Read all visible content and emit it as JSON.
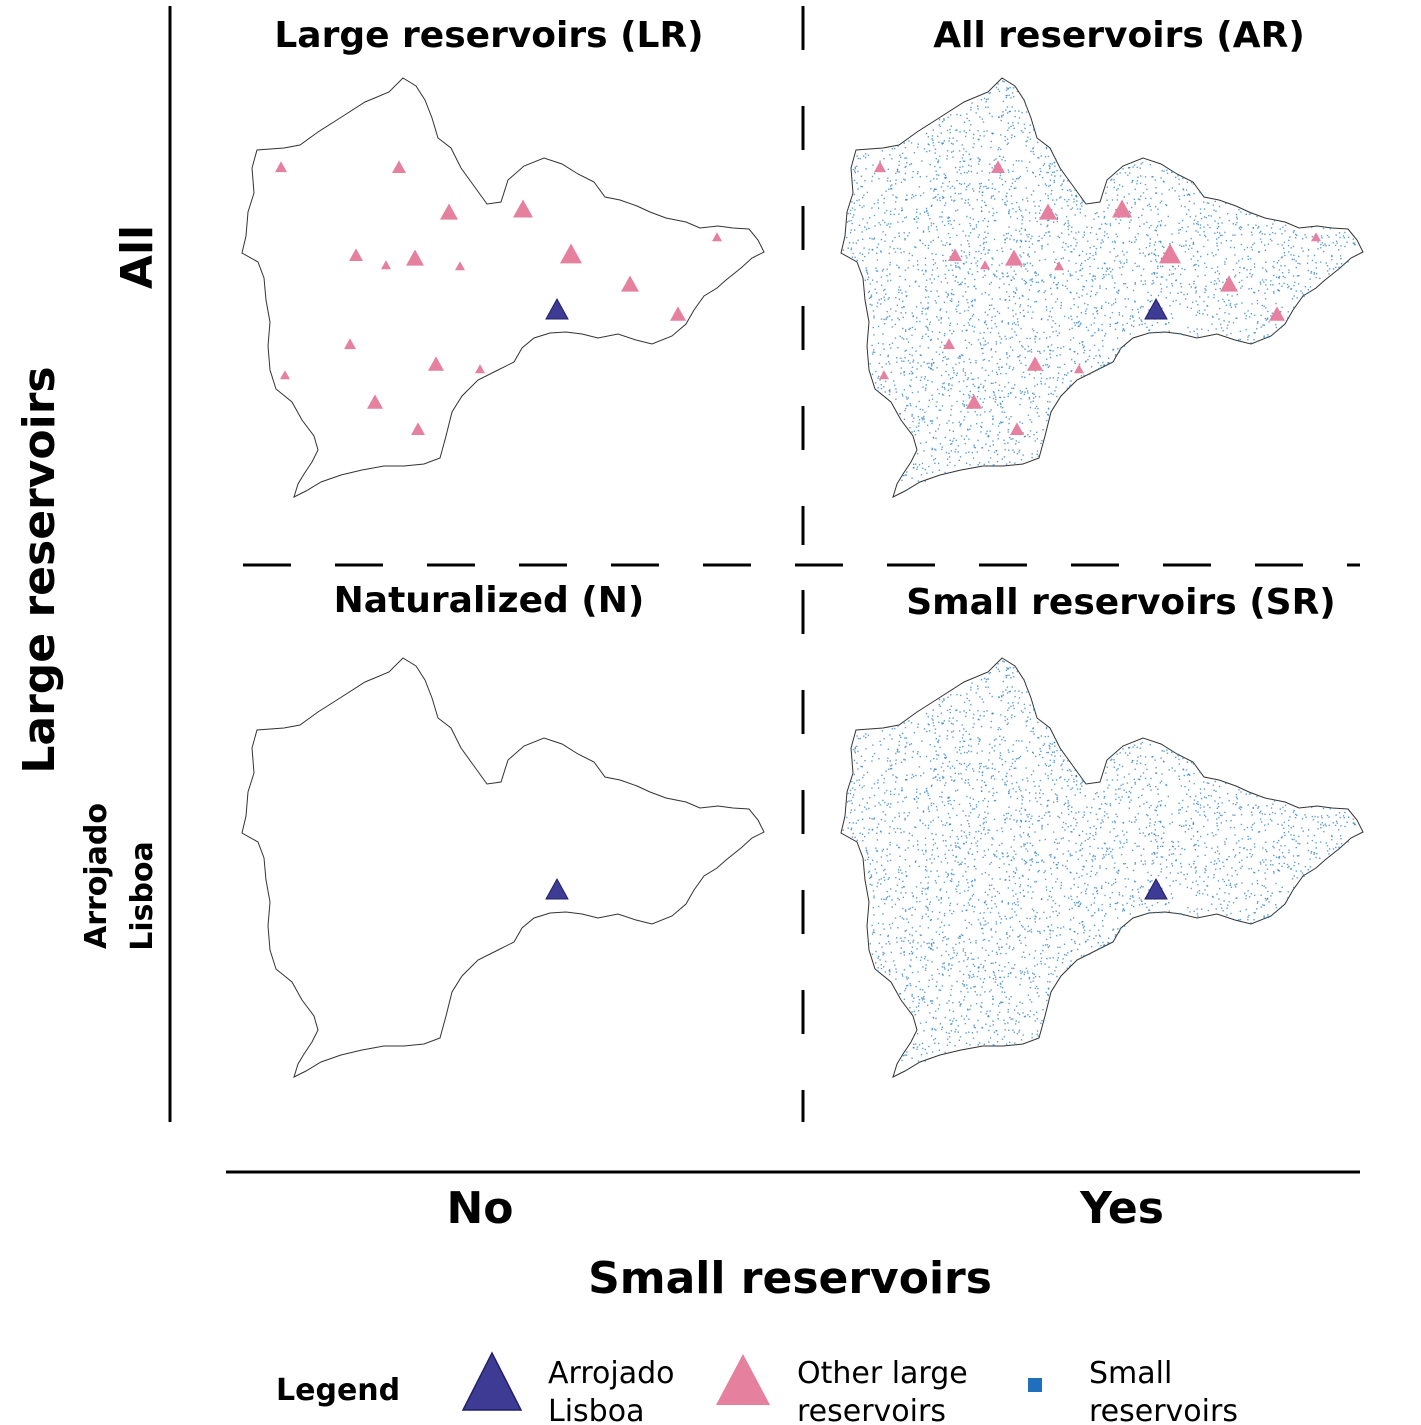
{
  "axis": {
    "y_label": "Large reservoirs",
    "y_row_top": "All",
    "y_row_bottom_line1": "Arrojado",
    "y_row_bottom_line2": "Lisboa",
    "x_label": "Small reservoirs",
    "x_col_left": "No",
    "x_col_right": "Yes"
  },
  "panels": [
    {
      "title": "Large reservoirs (LR)",
      "small_reservoirs": false,
      "other_large_reservoirs": true
    },
    {
      "title": "All reservoirs (AR)",
      "small_reservoirs": true,
      "other_large_reservoirs": true
    },
    {
      "title": "Naturalized (N)",
      "small_reservoirs": false,
      "other_large_reservoirs": false
    },
    {
      "title": "Small reservoirs (SR)",
      "small_reservoirs": true,
      "other_large_reservoirs": false
    }
  ],
  "legend": {
    "title": "Legend",
    "arrojado_line1": "Arrojado",
    "arrojado_line2": "Lisboa",
    "other_line1": "Other large",
    "other_line2": "reservoirs",
    "small_line1": "Small",
    "small_line2": "reservoirs"
  },
  "colors": {
    "arrojado": "#3d3b94",
    "other_large": "#e5809f",
    "small": "#2a7fc0",
    "basin_outline": "#333333"
  }
}
